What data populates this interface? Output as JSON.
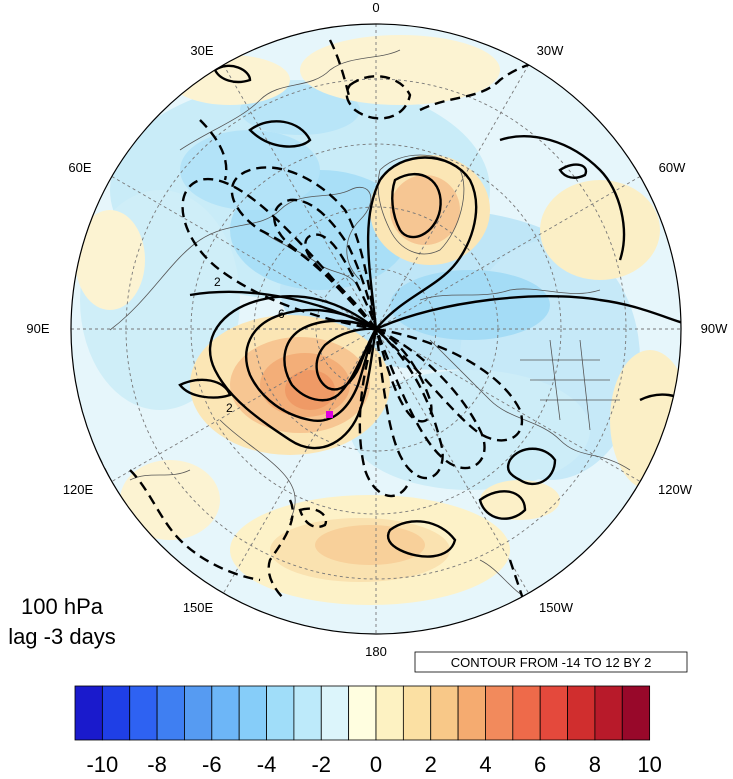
{
  "figure": {
    "level_label": "100 hPa",
    "lag_label": "lag -3 days",
    "contour_info": "CONTOUR FROM -14 TO 12 BY 2"
  },
  "map": {
    "projection": "north-polar-stereographic",
    "longitude_labels": [
      "0",
      "30W",
      "60W",
      "90W",
      "120W",
      "150W",
      "180",
      "150E",
      "120E",
      "90E",
      "60E",
      "30E"
    ],
    "marker_color": "#e000e0"
  },
  "colorbar": {
    "levels": [
      -11,
      -10,
      -9,
      -8,
      -7,
      -6,
      -5,
      -4,
      -3,
      -2,
      -1,
      0,
      1,
      2,
      3,
      4,
      5,
      6,
      7,
      8,
      9,
      10,
      11
    ],
    "tick_labels": [
      "-10",
      "-8",
      "-6",
      "-4",
      "-2",
      "0",
      "2",
      "4",
      "6",
      "8",
      "10"
    ],
    "colors": [
      "#1a1acc",
      "#1f3fe6",
      "#2e62f2",
      "#3f7ff2",
      "#569bf2",
      "#6db6f7",
      "#86cdf9",
      "#a0ddf9",
      "#bdeafa",
      "#dcf5fb",
      "#fffee0",
      "#fdf2c2",
      "#fbe0a3",
      "#f8c888",
      "#f5ab70",
      "#f28a5c",
      "#ee6a4a",
      "#e4493c",
      "#d02e2e",
      "#b81a2a",
      "#98082a"
    ]
  },
  "contour_labels": [
    "2",
    "6",
    "2"
  ]
}
